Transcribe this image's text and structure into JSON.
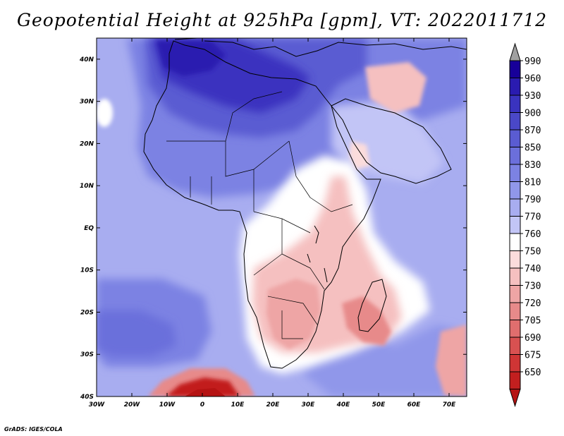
{
  "title": "Geopotential Height at 925hPa [gpm], VT: 2022011712",
  "credit": "GrADS: IGES/COLA",
  "map": {
    "lat_ticks": [
      {
        "value": 40,
        "label": "40N"
      },
      {
        "value": 30,
        "label": "30N"
      },
      {
        "value": 20,
        "label": "20N"
      },
      {
        "value": 10,
        "label": "10N"
      },
      {
        "value": 0,
        "label": "EQ"
      },
      {
        "value": -10,
        "label": "10S"
      },
      {
        "value": -20,
        "label": "20S"
      },
      {
        "value": -30,
        "label": "30S"
      },
      {
        "value": -40,
        "label": "40S"
      }
    ],
    "lon_ticks": [
      {
        "value": -30,
        "label": "30W"
      },
      {
        "value": -20,
        "label": "20W"
      },
      {
        "value": -10,
        "label": "10W"
      },
      {
        "value": 0,
        "label": "0"
      },
      {
        "value": 10,
        "label": "10E"
      },
      {
        "value": 20,
        "label": "20E"
      },
      {
        "value": 30,
        "label": "30E"
      },
      {
        "value": 40,
        "label": "40E"
      },
      {
        "value": 50,
        "label": "50E"
      },
      {
        "value": 60,
        "label": "60E"
      },
      {
        "value": 70,
        "label": "70E"
      }
    ],
    "lon_range": [
      -30,
      75
    ],
    "lat_range": [
      -40,
      45
    ]
  },
  "colorbar": {
    "levels": [
      "990",
      "960",
      "930",
      "900",
      "870",
      "850",
      "830",
      "810",
      "790",
      "770",
      "760",
      "750",
      "740",
      "730",
      "720",
      "705",
      "690",
      "675",
      "650"
    ],
    "colors": [
      "#170099",
      "#2a1bb0",
      "#3a33bf",
      "#4a48c8",
      "#5a5cd2",
      "#6b6fdb",
      "#7c82e3",
      "#9097ea",
      "#a8adf0",
      "#c2c5f6",
      "#ffffff",
      "#fbdcdc",
      "#f5c0c0",
      "#eea5a5",
      "#e78a8a",
      "#e06e6e",
      "#d85151",
      "#cf3535",
      "#c21f1f"
    ],
    "over_color": "#a0a0a0",
    "under_color": "#b51313"
  },
  "field_features": {
    "background_color": "#a8adf0",
    "highs": [
      {
        "lon": -5,
        "lat": 38,
        "value": 930
      },
      {
        "lon": 5,
        "lat": 28,
        "value": 870
      },
      {
        "lon": -25,
        "lat": -27,
        "value": 850
      }
    ],
    "lows": [
      {
        "lon": 2,
        "lat": -40,
        "value": 650
      },
      {
        "lon": 48,
        "lat": -22,
        "value": 730
      },
      {
        "lon": 52,
        "lat": 33,
        "value": 740
      },
      {
        "lon": 24,
        "lat": -18,
        "value": 745
      },
      {
        "lon": 72,
        "lat": -32,
        "value": 745
      }
    ]
  }
}
